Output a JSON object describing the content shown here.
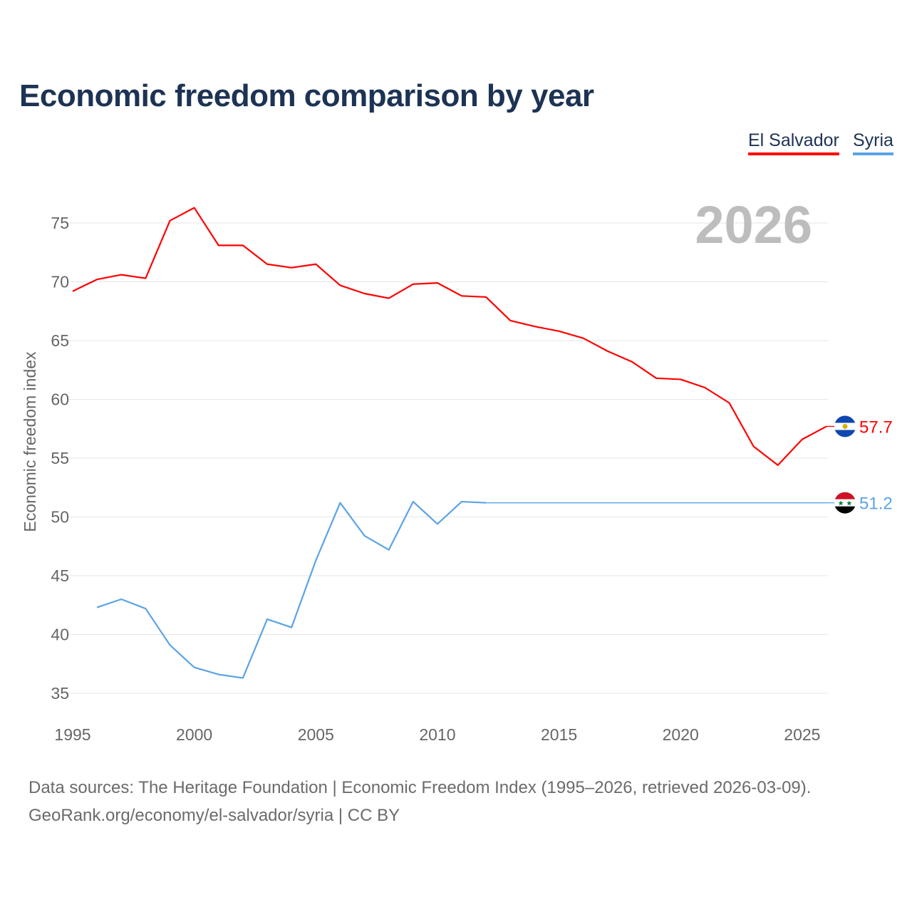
{
  "title": "Economic freedom comparison by year",
  "legend": [
    {
      "label": "El Salvador",
      "color": "#ff0000"
    },
    {
      "label": "Syria",
      "color": "#5ba3e6"
    }
  ],
  "footer": {
    "line1": "Data sources: The Heritage Foundation | Economic Freedom Index (1995–2026, retrieved 2026-03-09).",
    "line2": "GeoRank.org/economy/el-salvador/syria | CC BY"
  },
  "chart_data": {
    "type": "line",
    "year_label": "2026",
    "ylabel": "Economic freedom index",
    "xlim": [
      1995,
      2026
    ],
    "ylim": [
      33,
      77
    ],
    "yticks": [
      35,
      40,
      45,
      50,
      55,
      60,
      65,
      70,
      75
    ],
    "xticks": [
      1995,
      2000,
      2005,
      2010,
      2015,
      2020,
      2025
    ],
    "grid": true,
    "legend_position": "top-right",
    "series": [
      {
        "name": "El Salvador",
        "color": "#ff0000",
        "end_label": "57.7",
        "x": [
          1995,
          1996,
          1997,
          1998,
          1999,
          2000,
          2001,
          2002,
          2003,
          2004,
          2005,
          2006,
          2007,
          2008,
          2009,
          2010,
          2011,
          2012,
          2013,
          2014,
          2015,
          2016,
          2017,
          2018,
          2019,
          2020,
          2021,
          2022,
          2023,
          2024,
          2025,
          2026
        ],
        "values": [
          69.2,
          70.2,
          70.6,
          70.3,
          75.2,
          76.3,
          73.1,
          73.1,
          71.5,
          71.2,
          71.5,
          69.7,
          69.0,
          68.6,
          69.8,
          69.9,
          68.8,
          68.7,
          66.7,
          66.2,
          65.8,
          65.2,
          64.1,
          63.2,
          61.8,
          61.7,
          61.0,
          59.7,
          56.0,
          54.4,
          56.6,
          57.7
        ]
      },
      {
        "name": "Syria",
        "color": "#5ba3e6",
        "end_label": "51.2",
        "carry_forward_to": 2026,
        "x": [
          1996,
          1997,
          1998,
          1999,
          2000,
          2001,
          2002,
          2003,
          2004,
          2005,
          2006,
          2007,
          2008,
          2009,
          2010,
          2011,
          2012
        ],
        "values": [
          42.3,
          43.0,
          42.2,
          39.1,
          37.2,
          36.6,
          36.3,
          41.3,
          40.6,
          46.3,
          51.2,
          48.4,
          47.2,
          51.3,
          49.4,
          51.3,
          51.2
        ]
      }
    ]
  }
}
